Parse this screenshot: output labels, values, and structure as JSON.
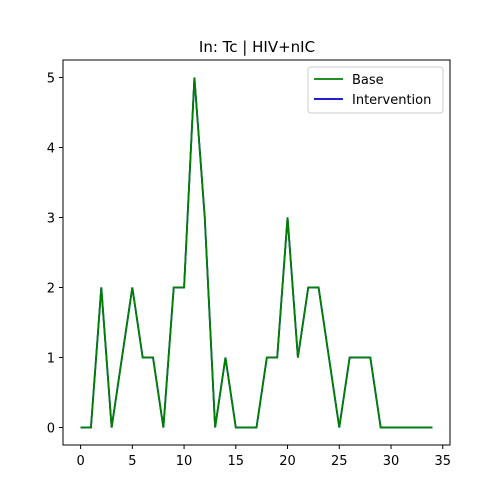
{
  "chart_data": {
    "type": "line",
    "title": "In: Tc | HIV+nIC",
    "xlabel": "",
    "ylabel": "",
    "xlim": [
      -1.7,
      35.7
    ],
    "ylim": [
      -0.25,
      5.25
    ],
    "x_ticks": [
      0,
      5,
      10,
      15,
      20,
      25,
      30,
      35
    ],
    "y_ticks": [
      0,
      1,
      2,
      3,
      4,
      5
    ],
    "x_tick_labels": [
      "0",
      "5",
      "10",
      "15",
      "20",
      "25",
      "30",
      "35"
    ],
    "y_tick_labels": [
      "0",
      "1",
      "2",
      "3",
      "4",
      "5"
    ],
    "grid": false,
    "legend_position": "top-right",
    "x": [
      0,
      1,
      2,
      3,
      4,
      5,
      6,
      7,
      8,
      9,
      10,
      11,
      12,
      13,
      14,
      15,
      16,
      17,
      18,
      19,
      20,
      21,
      22,
      23,
      24,
      25,
      26,
      27,
      28,
      29,
      30,
      31,
      32,
      33,
      34
    ],
    "series": [
      {
        "name": "Intervention",
        "color": "#0000cc",
        "values": [
          0,
          0,
          2,
          0,
          1,
          2,
          1,
          1,
          0,
          2,
          2,
          5,
          3,
          0,
          1,
          0,
          0,
          0,
          1,
          1,
          3,
          1,
          2,
          2,
          1,
          0,
          1,
          1,
          1,
          0,
          0,
          0,
          0,
          0,
          0
        ]
      },
      {
        "name": "Base",
        "color": "#008000",
        "values": [
          0,
          0,
          2,
          0,
          1,
          2,
          1,
          1,
          0,
          2,
          2,
          5,
          3,
          0,
          1,
          0,
          0,
          0,
          1,
          1,
          3,
          1,
          2,
          2,
          1,
          0,
          1,
          1,
          1,
          0,
          0,
          0,
          0,
          0,
          0
        ]
      }
    ],
    "legend": [
      {
        "name": "Base",
        "color": "#008000"
      },
      {
        "name": "Intervention",
        "color": "#0000cc"
      }
    ]
  }
}
